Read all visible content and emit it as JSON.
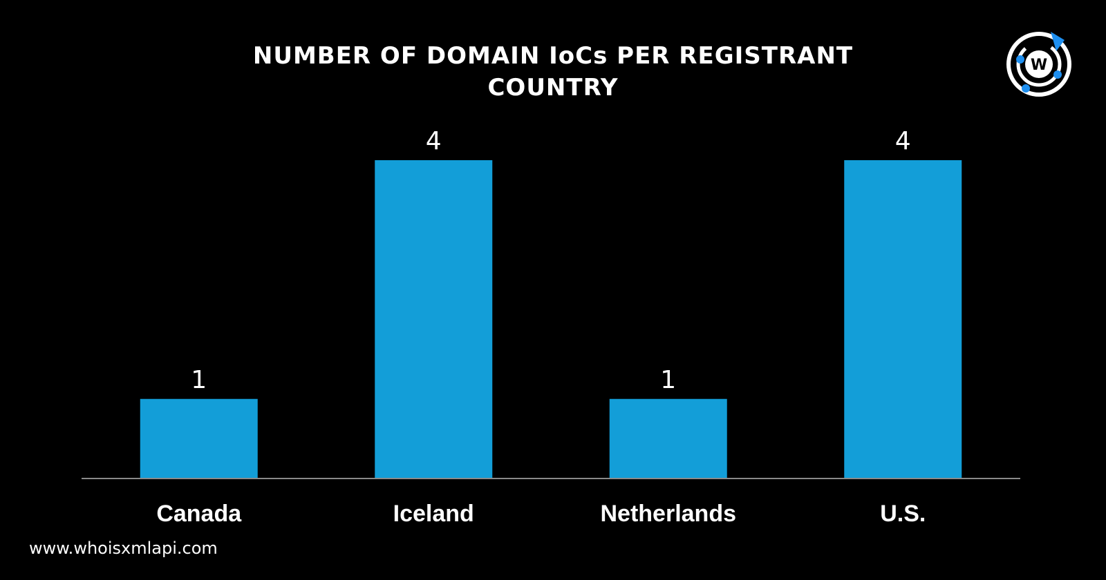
{
  "chart_data": {
    "type": "bar",
    "title_lines": [
      "NUMBER OF DOMAIN IoCs PER REGISTRANT",
      "COUNTRY"
    ],
    "categories": [
      "Canada",
      "Iceland",
      "Netherlands",
      "U.S."
    ],
    "values": [
      1,
      4,
      1,
      4
    ],
    "data_labels": [
      "1",
      "4",
      "1",
      "4"
    ],
    "xlabel": "",
    "ylabel": "",
    "ylim": [
      0,
      4
    ],
    "grid": false,
    "legend": "none",
    "bar_color": "#139ed8",
    "background": "#000000",
    "axis_color": "#8a8a8a"
  },
  "brand": {
    "logo_icon": "whoisxmlapi-logo-icon",
    "logo_letter": "W",
    "accent": "#1e8ff0",
    "footer_url": "www.whoisxmlapi.com"
  }
}
